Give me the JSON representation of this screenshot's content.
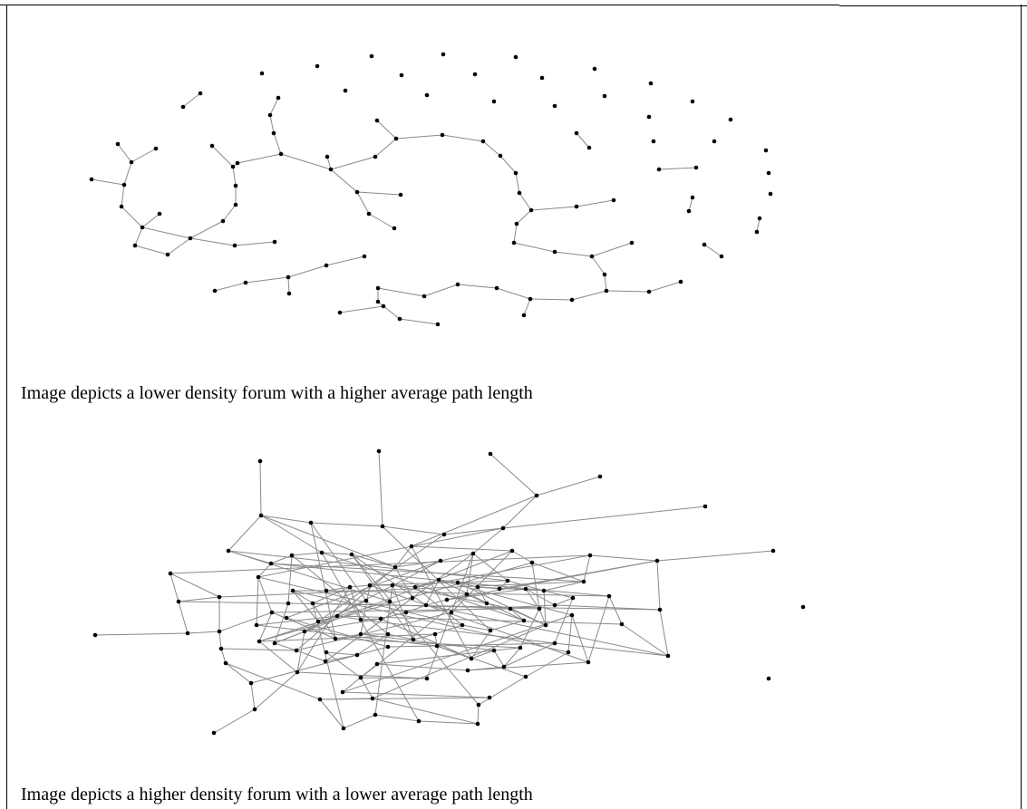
{
  "figure_1": {
    "caption": "Image depicts a lower density forum with a higher average path length"
  },
  "figure_2": {
    "caption": "Image depicts a higher density forum with a lower average path length"
  },
  "colors": {
    "node": "#000000",
    "edge": "#8a8a8a",
    "border": "#000000"
  }
}
